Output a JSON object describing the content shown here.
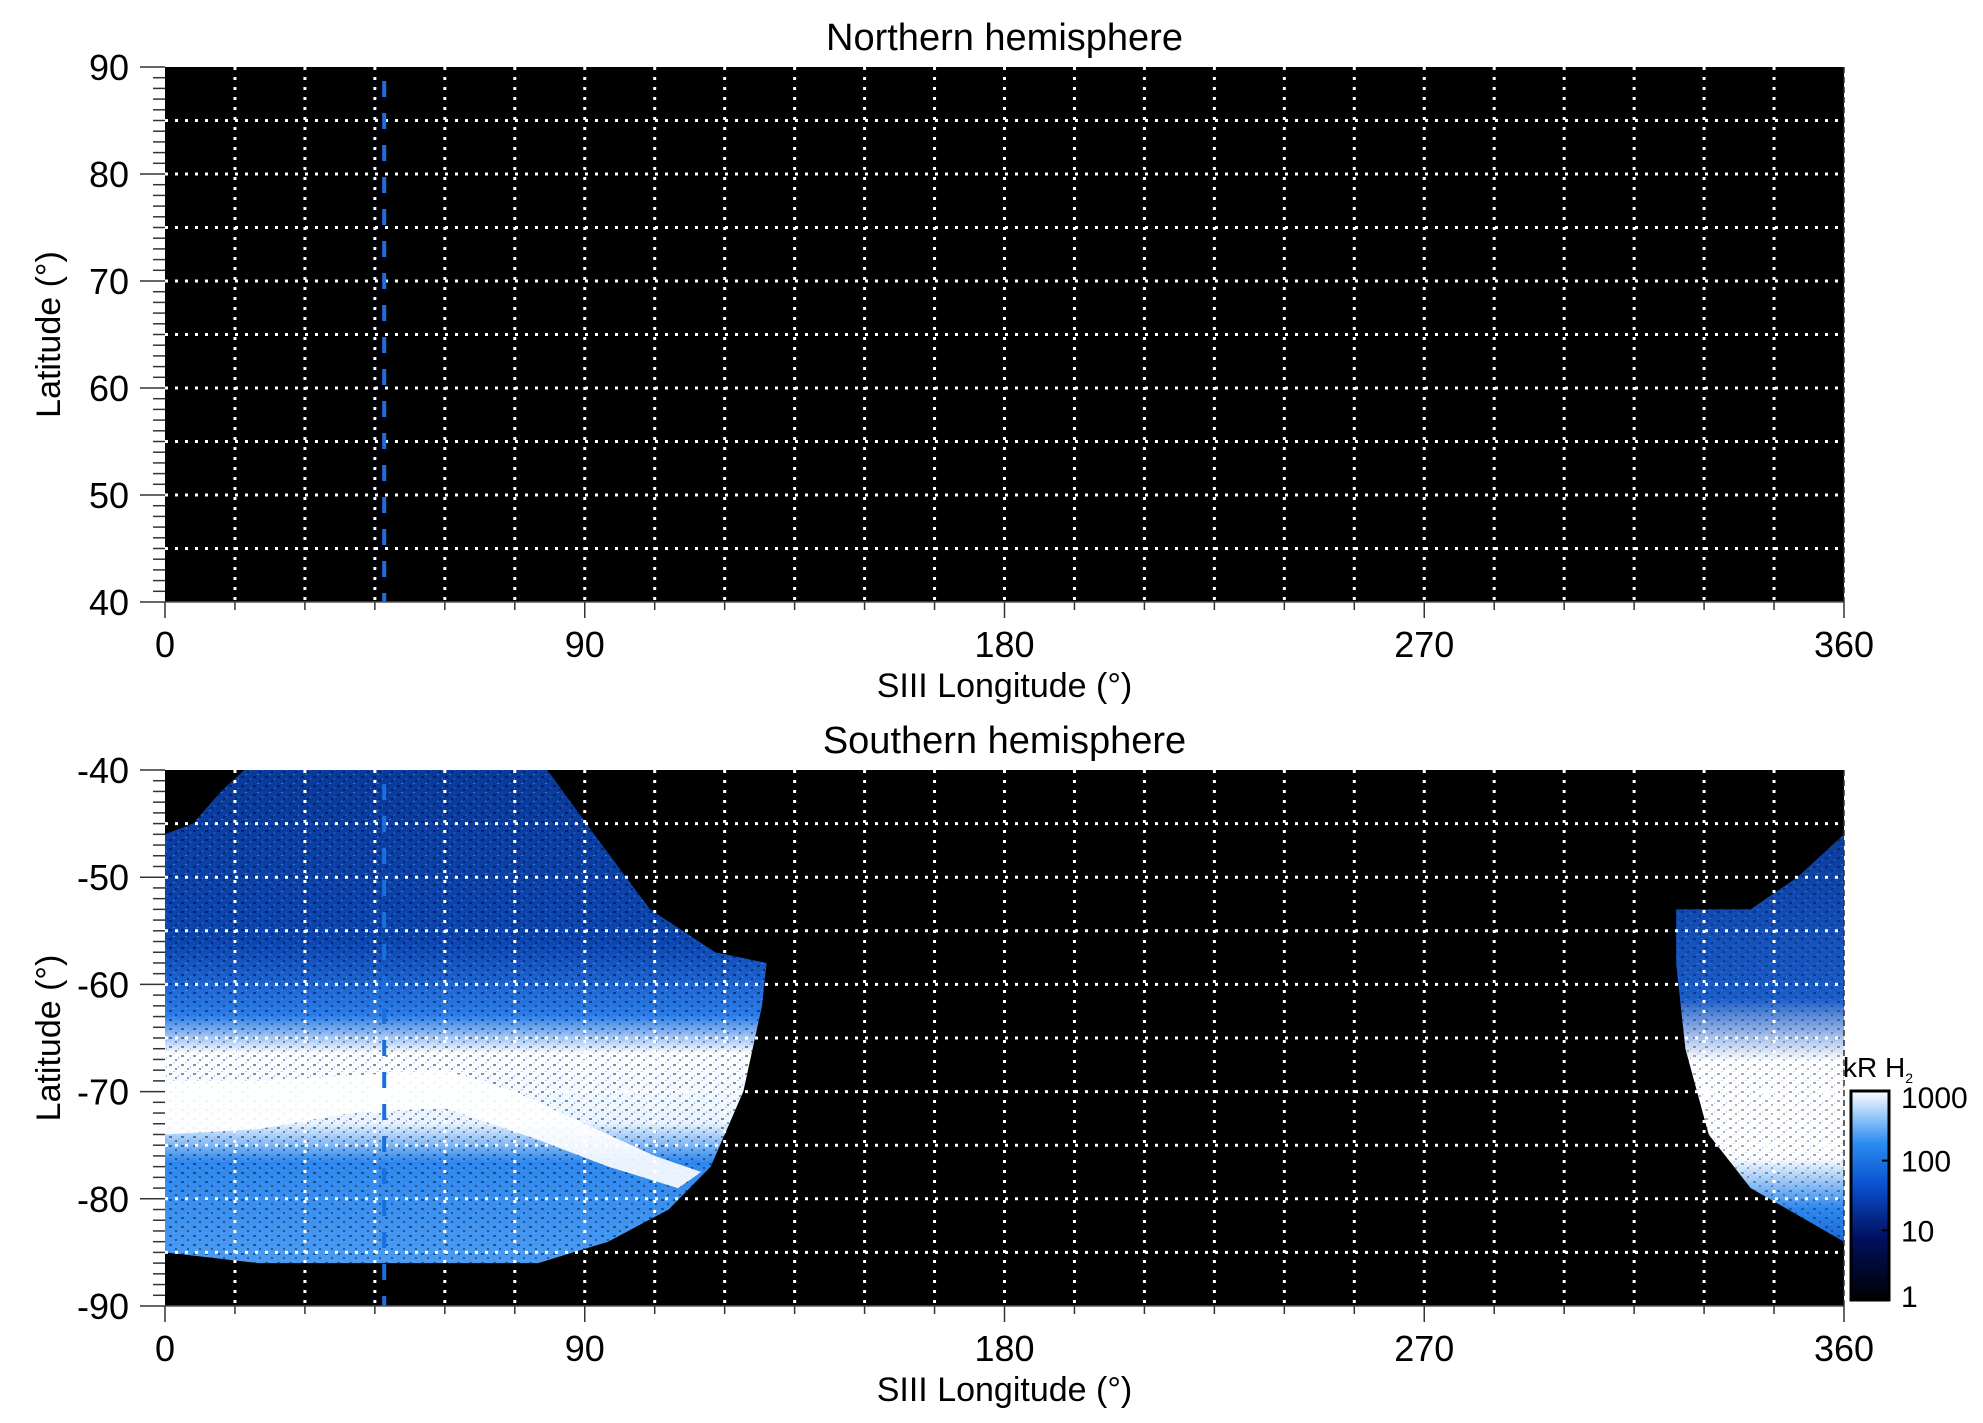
{
  "chart_data": [
    {
      "type": "heatmap",
      "title": "Northern hemisphere",
      "xlabel": "SIII Longitude (°)",
      "ylabel": "Latitude (°)",
      "xlim": [
        0,
        360
      ],
      "ylim": [
        40,
        90
      ],
      "xticks": [
        0,
        90,
        180,
        270,
        360
      ],
      "xtick_labels": [
        "0",
        "90",
        "180",
        "270",
        "360"
      ],
      "yticks": [
        90,
        80,
        70,
        60,
        50,
        40
      ],
      "ytick_labels": [
        "90",
        "80",
        "70",
        "60",
        "50",
        "40"
      ],
      "grid": {
        "on": true,
        "style": "dotted",
        "lon_step": 15,
        "lat_step": 5
      },
      "reference_line": {
        "longitude": 47,
        "style": "dashed",
        "color": "#1a6fe0"
      },
      "emission_regions": []
    },
    {
      "type": "heatmap",
      "title": "Southern hemisphere",
      "xlabel": "SIII Longitude (°)",
      "ylabel": "Latitude (°)",
      "xlim": [
        0,
        360
      ],
      "ylim": [
        -90,
        -40
      ],
      "xticks": [
        0,
        90,
        180,
        270,
        360
      ],
      "xtick_labels": [
        "0",
        "90",
        "180",
        "270",
        "360"
      ],
      "yticks": [
        -40,
        -50,
        -60,
        -70,
        -80,
        -90
      ],
      "ytick_labels": [
        "-40",
        "-50",
        "-60",
        "-70",
        "-80",
        "-90"
      ],
      "grid": {
        "on": true,
        "style": "dotted",
        "lon_step": 15,
        "lat_step": 5
      },
      "reference_line": {
        "longitude": 47,
        "style": "dashed",
        "color": "#1a6fe0"
      },
      "emission_regions": [
        {
          "name": "left",
          "lon_range": [
            0,
            129
          ],
          "lat_range": [
            -86,
            -40
          ],
          "main_oval_lat": [
            -77,
            -68
          ]
        },
        {
          "name": "right",
          "lon_range": [
            325,
            360
          ],
          "lat_range": [
            -84,
            -47
          ],
          "main_oval_lat": [
            -77,
            -70
          ]
        }
      ],
      "colorbar": {
        "label": "kR H",
        "label_subscript": "2",
        "scale": "log",
        "range": [
          1,
          1000
        ],
        "ticks": [
          1,
          10,
          100,
          1000
        ],
        "tick_labels": [
          "1",
          "10",
          "100",
          "1000"
        ],
        "colors": [
          "#000000",
          "#001060",
          "#0a50d0",
          "#2a8cf0",
          "#ffffff"
        ]
      }
    }
  ]
}
